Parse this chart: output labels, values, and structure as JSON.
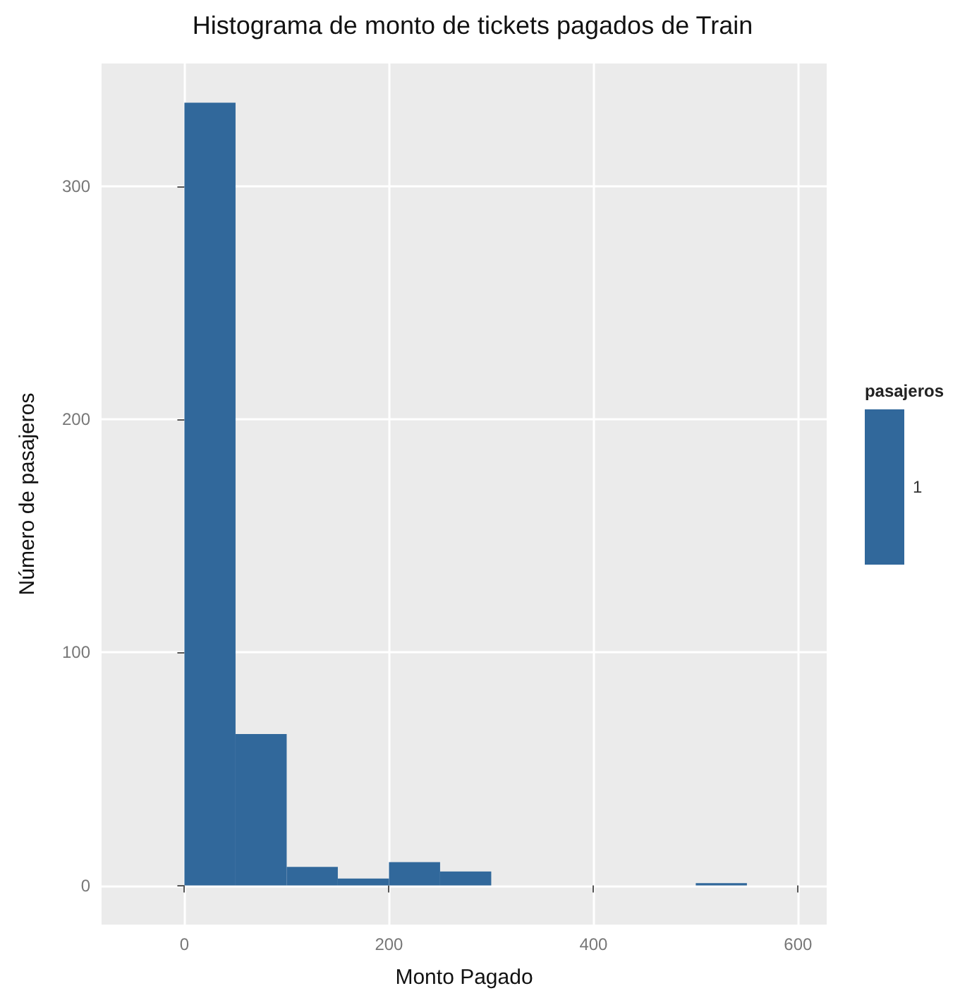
{
  "chart_data": {
    "type": "histogram",
    "title": "Histograma de monto de tickets pagados de Train",
    "xlabel": "Monto Pagado",
    "ylabel": "Número de pasajeros",
    "legend_title": "pasajeros",
    "bins": [
      0,
      50,
      100,
      150,
      200,
      250,
      300,
      350,
      400,
      450,
      500,
      550
    ],
    "series": [
      {
        "name": "1",
        "color": "#31689b",
        "values": [
          336,
          65,
          8,
          3,
          10,
          6,
          0,
          0,
          0,
          0,
          1
        ]
      }
    ],
    "xlim": [
      -81,
      628
    ],
    "xticks": [
      0,
      200,
      400,
      600
    ],
    "ylim": [
      -16.8,
      352.8
    ],
    "yticks": [
      0,
      100,
      200,
      300
    ],
    "grid": true,
    "legend": "right"
  }
}
